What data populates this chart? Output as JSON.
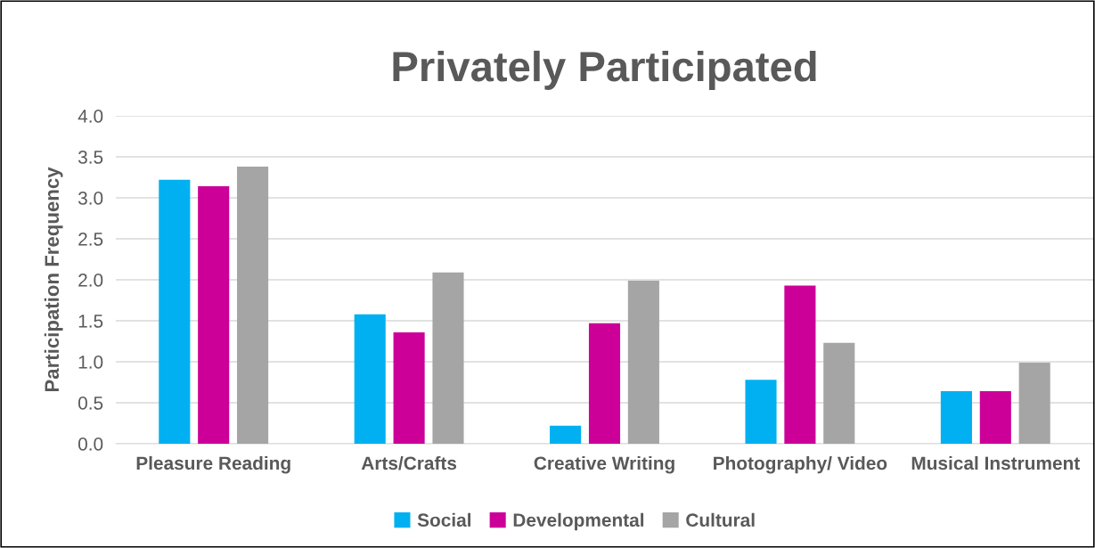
{
  "chart_data": {
    "type": "bar",
    "title": "Privately Participated",
    "ylabel": "Participation Frequency",
    "categories": [
      "Pleasure Reading",
      "Arts/Crafts",
      "Creative Writing",
      "Photography/ Video",
      "Musical Instrument"
    ],
    "series": [
      {
        "name": "Social",
        "color": "#00b0f0",
        "values": [
          3.22,
          1.58,
          0.22,
          0.78,
          0.64
        ]
      },
      {
        "name": "Developmental",
        "color": "#cc0099",
        "values": [
          3.14,
          1.36,
          1.47,
          1.93,
          0.64
        ]
      },
      {
        "name": "Cultural",
        "color": "#a5a5a5",
        "values": [
          3.38,
          2.09,
          1.99,
          1.23,
          0.99
        ]
      }
    ],
    "ylim": [
      0,
      4
    ],
    "yticks": [
      {
        "value": 0,
        "label": "0.0"
      },
      {
        "value": 0.5,
        "label": "0.5"
      },
      {
        "value": 1,
        "label": "1.0"
      },
      {
        "value": 1.5,
        "label": "1.5"
      },
      {
        "value": 2,
        "label": "2.0"
      },
      {
        "value": 2.5,
        "label": "2.5"
      },
      {
        "value": 3,
        "label": "3.0"
      },
      {
        "value": 3.5,
        "label": "3.5"
      },
      {
        "value": 4,
        "label": "4.0"
      }
    ],
    "grid": "y",
    "legend": "bottom"
  }
}
